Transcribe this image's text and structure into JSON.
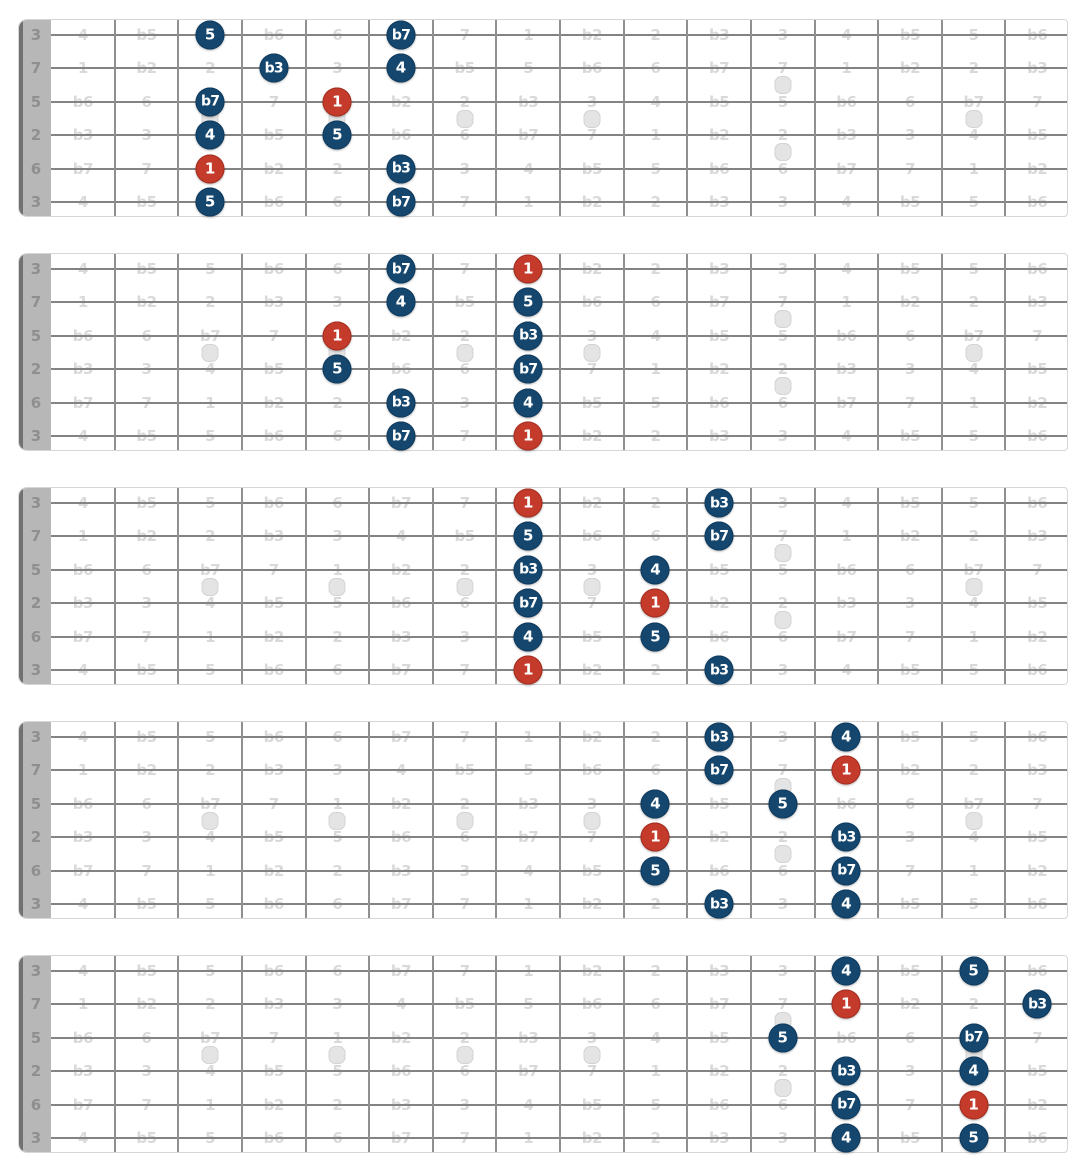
{
  "colors": {
    "board_border": "#d6d6d6",
    "nut_fill": "#b7b7b7",
    "nut_edge": "#717171",
    "nut_label": "#8f8f8f",
    "string_color": "#838383",
    "fret_color": "#909090",
    "grid_label": "#d9d9d9",
    "inlay_fill": "#e4e4e4",
    "inlay_border": "#d4d4d4",
    "note_fill": "#15476e",
    "note_border": "#0e3a5e",
    "root_fill": "#c43a2b",
    "root_border": "#a32d20",
    "dot_text": "#ffffff"
  },
  "board": {
    "num_frets": 16,
    "num_strings": 6,
    "nut_labels": [
      "3",
      "7",
      "5",
      "2",
      "6",
      "3"
    ],
    "grid_labels": [
      [
        "4",
        "b5",
        "5",
        "b6",
        "6",
        "b7",
        "7",
        "1",
        "b2",
        "2",
        "b3",
        "3",
        "4",
        "b5",
        "5",
        "b6"
      ],
      [
        "1",
        "b2",
        "2",
        "b3",
        "3",
        "4",
        "b5",
        "5",
        "b6",
        "6",
        "b7",
        "7",
        "1",
        "b2",
        "2",
        "b3"
      ],
      [
        "b6",
        "6",
        "b7",
        "7",
        "1",
        "b2",
        "2",
        "b3",
        "3",
        "4",
        "b5",
        "5",
        "b6",
        "6",
        "b7",
        "7"
      ],
      [
        "b3",
        "3",
        "4",
        "b5",
        "5",
        "b6",
        "6",
        "b7",
        "7",
        "1",
        "b2",
        "2",
        "b3",
        "3",
        "4",
        "b5"
      ],
      [
        "b7",
        "7",
        "1",
        "b2",
        "2",
        "b3",
        "3",
        "4",
        "b5",
        "5",
        "b6",
        "6",
        "b7",
        "7",
        "1",
        "b2"
      ],
      [
        "4",
        "b5",
        "5",
        "b6",
        "6",
        "b7",
        "7",
        "1",
        "b2",
        "2",
        "b3",
        "3",
        "4",
        "b5",
        "5",
        "b6"
      ]
    ],
    "inlay_single_frets": [
      3,
      5,
      7,
      9,
      15
    ],
    "inlay_double_frets": [
      12
    ]
  },
  "diagrams": [
    {
      "name": "pentatonic-position-1",
      "dots": [
        {
          "string": 1,
          "fret": 3,
          "label": "5",
          "root": false
        },
        {
          "string": 1,
          "fret": 6,
          "label": "b7",
          "root": false
        },
        {
          "string": 2,
          "fret": 4,
          "label": "b3",
          "root": false
        },
        {
          "string": 2,
          "fret": 6,
          "label": "4",
          "root": false
        },
        {
          "string": 3,
          "fret": 3,
          "label": "b7",
          "root": false
        },
        {
          "string": 3,
          "fret": 5,
          "label": "1",
          "root": true
        },
        {
          "string": 4,
          "fret": 3,
          "label": "4",
          "root": false
        },
        {
          "string": 4,
          "fret": 5,
          "label": "5",
          "root": false
        },
        {
          "string": 5,
          "fret": 3,
          "label": "1",
          "root": true
        },
        {
          "string": 5,
          "fret": 6,
          "label": "b3",
          "root": false
        },
        {
          "string": 6,
          "fret": 3,
          "label": "5",
          "root": false
        },
        {
          "string": 6,
          "fret": 6,
          "label": "b7",
          "root": false
        }
      ]
    },
    {
      "name": "pentatonic-position-2",
      "dots": [
        {
          "string": 1,
          "fret": 6,
          "label": "b7",
          "root": false
        },
        {
          "string": 1,
          "fret": 8,
          "label": "1",
          "root": true
        },
        {
          "string": 2,
          "fret": 6,
          "label": "4",
          "root": false
        },
        {
          "string": 2,
          "fret": 8,
          "label": "5",
          "root": false
        },
        {
          "string": 3,
          "fret": 5,
          "label": "1",
          "root": true
        },
        {
          "string": 3,
          "fret": 8,
          "label": "b3",
          "root": false
        },
        {
          "string": 4,
          "fret": 5,
          "label": "5",
          "root": false
        },
        {
          "string": 4,
          "fret": 8,
          "label": "b7",
          "root": false
        },
        {
          "string": 5,
          "fret": 6,
          "label": "b3",
          "root": false
        },
        {
          "string": 5,
          "fret": 8,
          "label": "4",
          "root": false
        },
        {
          "string": 6,
          "fret": 6,
          "label": "b7",
          "root": false
        },
        {
          "string": 6,
          "fret": 8,
          "label": "1",
          "root": true
        }
      ]
    },
    {
      "name": "pentatonic-position-3",
      "dots": [
        {
          "string": 1,
          "fret": 8,
          "label": "1",
          "root": true
        },
        {
          "string": 1,
          "fret": 11,
          "label": "b3",
          "root": false
        },
        {
          "string": 2,
          "fret": 8,
          "label": "5",
          "root": false
        },
        {
          "string": 2,
          "fret": 11,
          "label": "b7",
          "root": false
        },
        {
          "string": 3,
          "fret": 8,
          "label": "b3",
          "root": false
        },
        {
          "string": 3,
          "fret": 10,
          "label": "4",
          "root": false
        },
        {
          "string": 4,
          "fret": 8,
          "label": "b7",
          "root": false
        },
        {
          "string": 4,
          "fret": 10,
          "label": "1",
          "root": true
        },
        {
          "string": 5,
          "fret": 8,
          "label": "4",
          "root": false
        },
        {
          "string": 5,
          "fret": 10,
          "label": "5",
          "root": false
        },
        {
          "string": 6,
          "fret": 8,
          "label": "1",
          "root": true
        },
        {
          "string": 6,
          "fret": 11,
          "label": "b3",
          "root": false
        }
      ]
    },
    {
      "name": "pentatonic-position-4",
      "dots": [
        {
          "string": 1,
          "fret": 11,
          "label": "b3",
          "root": false
        },
        {
          "string": 1,
          "fret": 13,
          "label": "4",
          "root": false
        },
        {
          "string": 2,
          "fret": 11,
          "label": "b7",
          "root": false
        },
        {
          "string": 2,
          "fret": 13,
          "label": "1",
          "root": true
        },
        {
          "string": 3,
          "fret": 10,
          "label": "4",
          "root": false
        },
        {
          "string": 3,
          "fret": 12,
          "label": "5",
          "root": false
        },
        {
          "string": 4,
          "fret": 10,
          "label": "1",
          "root": true
        },
        {
          "string": 4,
          "fret": 13,
          "label": "b3",
          "root": false
        },
        {
          "string": 5,
          "fret": 10,
          "label": "5",
          "root": false
        },
        {
          "string": 5,
          "fret": 13,
          "label": "b7",
          "root": false
        },
        {
          "string": 6,
          "fret": 11,
          "label": "b3",
          "root": false
        },
        {
          "string": 6,
          "fret": 13,
          "label": "4",
          "root": false
        }
      ]
    },
    {
      "name": "pentatonic-position-5",
      "dots": [
        {
          "string": 1,
          "fret": 13,
          "label": "4",
          "root": false
        },
        {
          "string": 1,
          "fret": 15,
          "label": "5",
          "root": false
        },
        {
          "string": 2,
          "fret": 13,
          "label": "1",
          "root": true
        },
        {
          "string": 2,
          "fret": 16,
          "label": "b3",
          "root": false
        },
        {
          "string": 3,
          "fret": 12,
          "label": "5",
          "root": false
        },
        {
          "string": 3,
          "fret": 15,
          "label": "b7",
          "root": false
        },
        {
          "string": 4,
          "fret": 13,
          "label": "b3",
          "root": false
        },
        {
          "string": 4,
          "fret": 15,
          "label": "4",
          "root": false
        },
        {
          "string": 5,
          "fret": 13,
          "label": "b7",
          "root": false
        },
        {
          "string": 5,
          "fret": 15,
          "label": "1",
          "root": true
        },
        {
          "string": 6,
          "fret": 13,
          "label": "4",
          "root": false
        },
        {
          "string": 6,
          "fret": 15,
          "label": "5",
          "root": false
        }
      ]
    }
  ]
}
